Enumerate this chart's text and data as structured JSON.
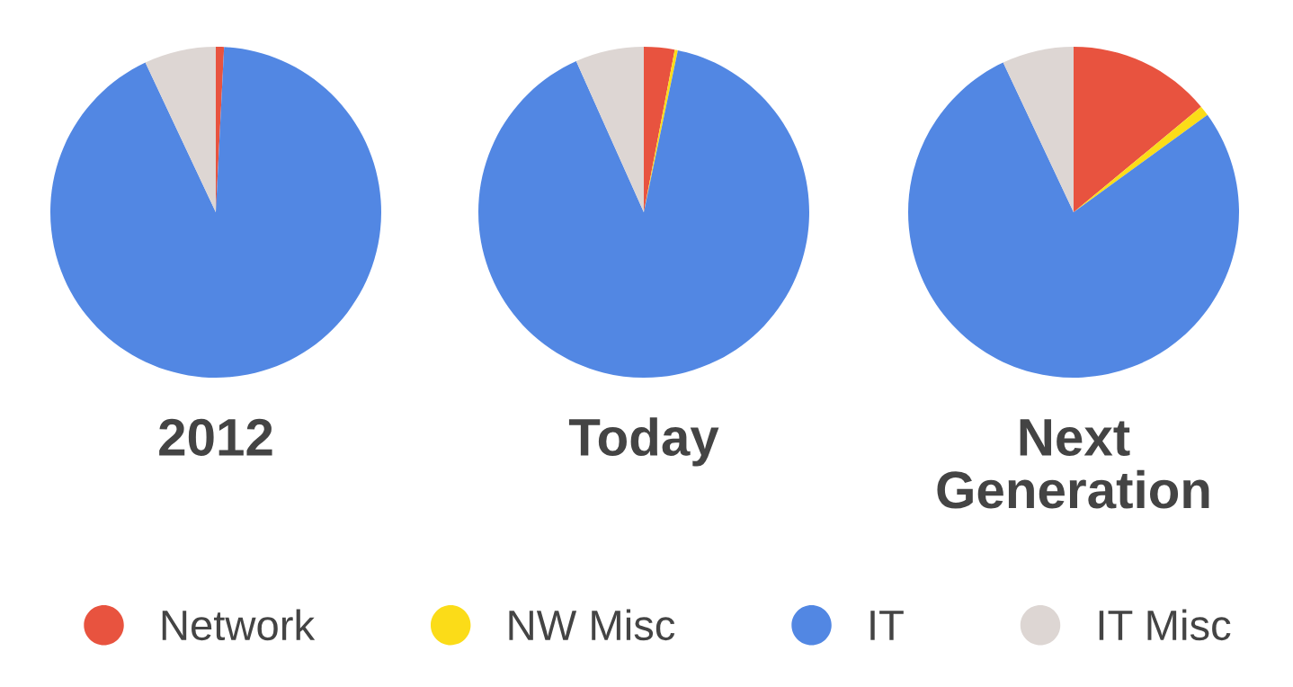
{
  "chart_data": [
    {
      "type": "pie",
      "title": "2012",
      "categories": [
        null,
        null,
        null,
        null
      ],
      "values": [
        0.8,
        0,
        92.2,
        7
      ],
      "colors": [
        "#e8533f",
        "#fbdc18",
        "#5287e3",
        "#ddd6d3"
      ]
    },
    {
      "type": "pie",
      "title": "Today",
      "categories": [
        null,
        null,
        null,
        null
      ],
      "values": [
        3,
        0.3,
        90,
        6.7
      ],
      "colors": [
        "#e8533f",
        "#fbdc18",
        "#5287e3",
        "#ddd6d3"
      ]
    },
    {
      "type": "pie",
      "title": "Next\nGeneration",
      "categories": [
        "Network",
        "NW Misc",
        "IT",
        "IT Misc"
      ],
      "values": [
        14,
        1,
        78,
        7
      ],
      "colors": [
        "#e8533f",
        "#fbdc18",
        "#5287e3",
        "#ddd6d3"
      ],
      "legend": "bottom"
    }
  ]
}
